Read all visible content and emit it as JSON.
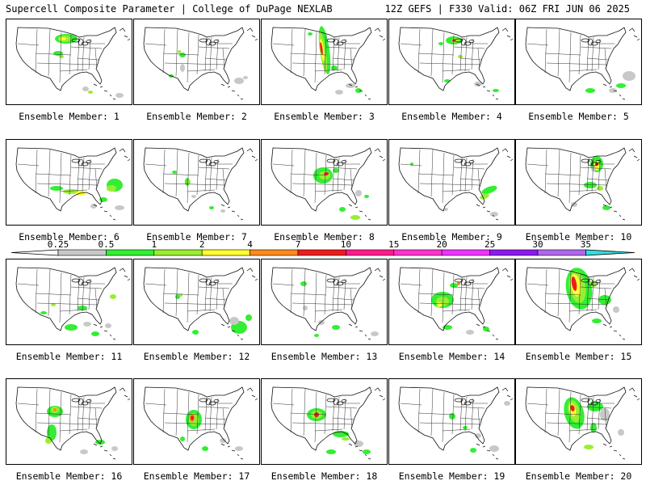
{
  "header": {
    "left": "Supercell Composite Parameter | College of DuPage NEXLAB",
    "right": "12Z GEFS | F330 Valid: 06Z FRI JUN 06 2025"
  },
  "colorbar": {
    "labels": [
      "0.25",
      "0.5",
      "1",
      "2",
      "4",
      "7",
      "10",
      "15",
      "20",
      "25",
      "30",
      "35"
    ],
    "colors": [
      "#c8c8c8",
      "#33ee33",
      "#99ee33",
      "#ffff33",
      "#ff8a1e",
      "#ee1c1c",
      "#ff1a8c",
      "#ff33cc",
      "#ee33ff",
      "#8a1aee",
      "#b066ee",
      "#33dddd"
    ]
  },
  "panels": [
    {
      "label": "Ensemble Member: 1"
    },
    {
      "label": "Ensemble Member: 2"
    },
    {
      "label": "Ensemble Member: 3"
    },
    {
      "label": "Ensemble Member: 4"
    },
    {
      "label": "Ensemble Member: 5"
    },
    {
      "label": "Ensemble Member: 6"
    },
    {
      "label": "Ensemble Member: 7"
    },
    {
      "label": "Ensemble Member: 8"
    },
    {
      "label": "Ensemble Member: 9"
    },
    {
      "label": "Ensemble Member: 10"
    },
    {
      "label": "Ensemble Member: 11"
    },
    {
      "label": "Ensemble Member: 12"
    },
    {
      "label": "Ensemble Member: 13"
    },
    {
      "label": "Ensemble Member: 14"
    },
    {
      "label": "Ensemble Member: 15"
    },
    {
      "label": "Ensemble Member: 16"
    },
    {
      "label": "Ensemble Member: 17"
    },
    {
      "label": "Ensemble Member: 18"
    },
    {
      "label": "Ensemble Member: 19"
    },
    {
      "label": "Ensemble Member: 20"
    }
  ]
}
